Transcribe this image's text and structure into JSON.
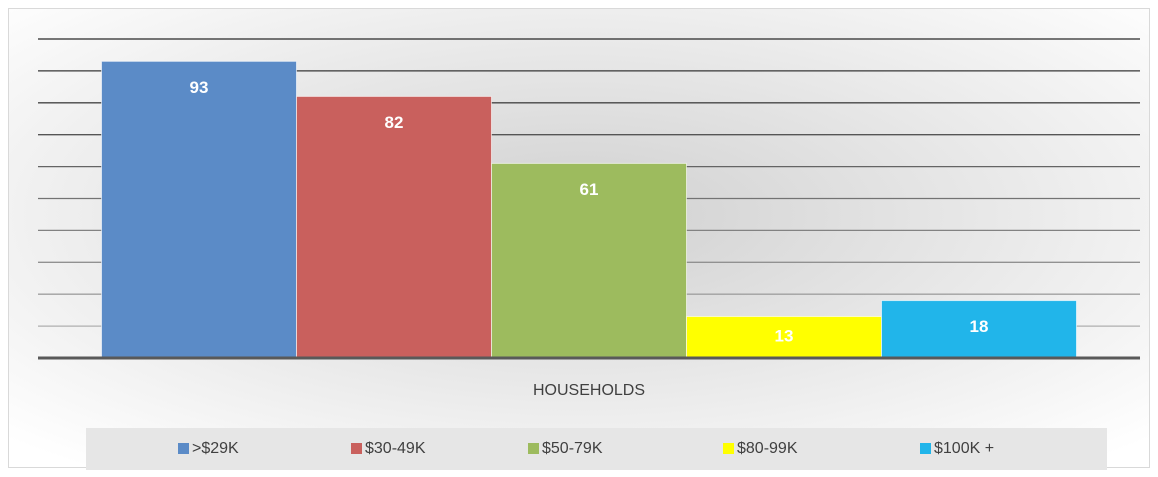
{
  "chart_data": {
    "type": "bar",
    "categories": [
      "HOUSEHOLDS"
    ],
    "series": [
      {
        "name": ">$29K",
        "color": "#5b8bc7",
        "values": [
          93
        ]
      },
      {
        "name": "$30-49K",
        "color": "#c9605d",
        "values": [
          82
        ]
      },
      {
        "name": "$50-79K",
        "color": "#9dbb5e",
        "values": [
          61
        ]
      },
      {
        "name": "$80-99K",
        "color": "#ffff00",
        "values": [
          13
        ]
      },
      {
        "name": "$100K +",
        "color": "#21b5ea",
        "values": [
          18
        ]
      }
    ],
    "ylim": [
      0,
      100
    ],
    "yticks": [
      0,
      10,
      20,
      30,
      40,
      50,
      60,
      70,
      80,
      90,
      100
    ],
    "grid": true,
    "legend": "bottom"
  }
}
